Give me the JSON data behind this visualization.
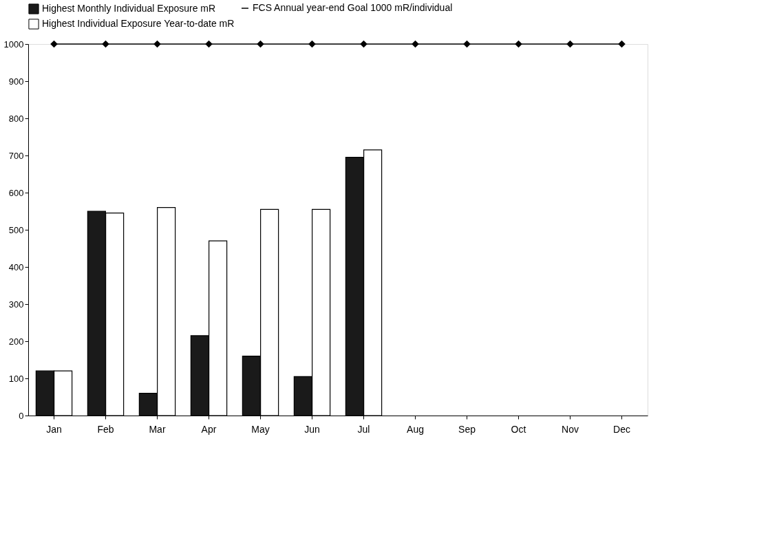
{
  "chart_data": {
    "type": "bar",
    "categories": [
      "Jan",
      "Feb",
      "Mar",
      "Apr",
      "May",
      "Jun",
      "Jul",
      "Aug",
      "Sep",
      "Oct",
      "Nov",
      "Dec"
    ],
    "series": [
      {
        "name": "Highest Monthly Individual Exposure mR",
        "color": "#1a1a1a",
        "values": [
          120,
          550,
          60,
          215,
          160,
          105,
          695,
          null,
          null,
          null,
          null,
          null
        ]
      },
      {
        "name": "Highest Individual Exposure Year-to-date mR",
        "color": "#ffffff",
        "values": [
          120,
          545,
          560,
          470,
          555,
          555,
          715,
          null,
          null,
          null,
          null,
          null
        ]
      },
      {
        "name": "FCS Annual year-end Goal 1000 mR/individual",
        "type": "line",
        "color": "#000000",
        "marker": "diamond",
        "values": [
          1000,
          1000,
          1000,
          1000,
          1000,
          1000,
          1000,
          1000,
          1000,
          1000,
          1000,
          1000
        ]
      }
    ],
    "ylim": [
      0,
      1000
    ],
    "yticks": [
      0,
      100,
      200,
      300,
      400,
      500,
      600,
      700,
      800,
      900,
      1000
    ],
    "grid": false,
    "legend": "top"
  }
}
